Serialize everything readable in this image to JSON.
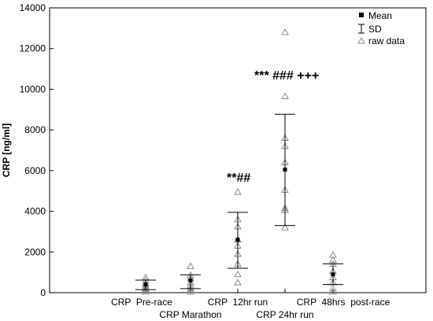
{
  "chart_data": {
    "type": "scatter",
    "ylabel": "CRP [ng/ml]",
    "ylim": [
      0,
      14000
    ],
    "yticks": [
      0,
      2000,
      4000,
      6000,
      8000,
      10000,
      12000,
      14000
    ],
    "grid": false,
    "legend_position": "top-right",
    "legend": [
      "Mean",
      "SD",
      "raw data"
    ],
    "categories": [
      "CRP  Pre-race",
      "CRP Marathon",
      "CRP  12hr run",
      "CRP 24hr run",
      "CRP  48hrs  post-race"
    ],
    "series": [
      {
        "name": "Mean",
        "values": [
          400,
          600,
          2600,
          6050,
          900
        ]
      },
      {
        "name": "SD",
        "low": [
          150,
          200,
          1200,
          3300,
          400
        ],
        "high": [
          620,
          880,
          3950,
          8770,
          1420
        ]
      }
    ],
    "raw_data": [
      [
        750,
        600,
        450,
        350,
        250,
        200,
        150,
        100,
        50
      ],
      [
        1300,
        850,
        700,
        500,
        350,
        200,
        100,
        50
      ],
      [
        4950,
        3600,
        3250,
        2600,
        2300,
        1900,
        1400,
        900,
        500
      ],
      [
        12800,
        9650,
        7600,
        7200,
        6400,
        5050,
        4150,
        4050,
        3200
      ],
      [
        1850,
        1600,
        1400,
        1050,
        750,
        500,
        200,
        50
      ]
    ],
    "annotations": [
      "**##",
      "*** ### +++"
    ]
  },
  "style": {
    "axis_color": "#000000",
    "marker_color": "#000000",
    "raw_marker_color": "#8c8c8c"
  }
}
